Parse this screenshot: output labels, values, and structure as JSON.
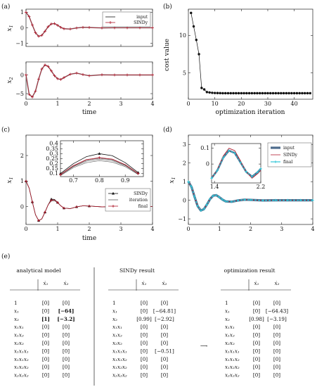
{
  "panel_labels": [
    "(a)",
    "(b)",
    "(c)",
    "(d)",
    "(e)"
  ],
  "colors": {
    "input": "#8a8a8a",
    "sindy": "#b01c2e",
    "final_d": "#2fc6d8",
    "input_d": "#4d6b8c",
    "iteration": "#5a5a5a",
    "coef_blue": "#1c72a8",
    "coef_red": "#b01c2e"
  },
  "chart_data": [
    {
      "id": "a1",
      "type": "line",
      "ylabel": "x1",
      "xlabel": "",
      "xlim": [
        0,
        4
      ],
      "ylim": [
        -1.2,
        1.2
      ],
      "xticks": [
        0,
        1,
        2,
        3,
        4
      ],
      "yticks": [
        -1,
        0,
        1
      ],
      "x": [
        0,
        0.1,
        0.2,
        0.3,
        0.4,
        0.5,
        0.6,
        0.7,
        0.8,
        0.9,
        1.0,
        1.1,
        1.2,
        1.4,
        1.6,
        1.8,
        2.0,
        2.4,
        2.8,
        3.2,
        3.6,
        4.0
      ],
      "series": [
        {
          "name": "input",
          "values": [
            1.0,
            0.72,
            0.18,
            -0.32,
            -0.55,
            -0.48,
            -0.22,
            0.07,
            0.25,
            0.27,
            0.16,
            0.03,
            -0.06,
            -0.08,
            -0.01,
            0.03,
            0.02,
            -0.01,
            0.0,
            0.0,
            0.0,
            0.0
          ]
        },
        {
          "name": "SINDy",
          "values": [
            1.0,
            0.72,
            0.18,
            -0.32,
            -0.55,
            -0.48,
            -0.22,
            0.07,
            0.25,
            0.27,
            0.16,
            0.03,
            -0.06,
            -0.08,
            -0.01,
            0.03,
            0.02,
            -0.01,
            0.0,
            0.0,
            0.0,
            0.0
          ]
        }
      ],
      "legend": [
        "input",
        "SINDy"
      ],
      "legend_position": "top-right",
      "tick_labels_x": false
    },
    {
      "id": "a2",
      "type": "line",
      "ylabel": "x2",
      "xlabel": "time",
      "xlim": [
        0,
        4
      ],
      "ylim": [
        -6.5,
        3.5
      ],
      "xticks": [
        0,
        1,
        2,
        3,
        4
      ],
      "yticks": [
        -5,
        0
      ],
      "x": [
        0,
        0.1,
        0.2,
        0.3,
        0.4,
        0.5,
        0.6,
        0.7,
        0.8,
        0.9,
        1.0,
        1.1,
        1.2,
        1.4,
        1.6,
        1.8,
        2.0,
        2.4,
        2.8,
        3.2,
        3.6,
        4.0
      ],
      "series": [
        {
          "name": "input",
          "values": [
            0.0,
            -5.2,
            -5.9,
            -4.3,
            -1.1,
            1.6,
            2.7,
            2.3,
            1.1,
            -0.2,
            -1.0,
            -1.2,
            -0.7,
            0.2,
            0.5,
            0.1,
            -0.2,
            0.05,
            0.0,
            0.0,
            0.0,
            0.0
          ]
        },
        {
          "name": "SINDy",
          "values": [
            0.0,
            -5.2,
            -5.9,
            -4.3,
            -1.1,
            1.6,
            2.7,
            2.3,
            1.1,
            -0.2,
            -1.0,
            -1.2,
            -0.7,
            0.2,
            0.5,
            0.1,
            -0.2,
            0.05,
            0.0,
            0.0,
            0.0,
            0.0
          ]
        }
      ]
    },
    {
      "id": "b",
      "type": "line",
      "ylabel": "cost value",
      "xlabel": "optimization iteration",
      "xlim": [
        0,
        47
      ],
      "ylim": [
        1.5,
        13.5
      ],
      "xticks": [
        0,
        10,
        20,
        30,
        40
      ],
      "yticks": [
        5,
        10
      ],
      "x": [
        1,
        2,
        3,
        4,
        5,
        6,
        7,
        8,
        9,
        10,
        11,
        12,
        13,
        14,
        15,
        16,
        17,
        18,
        19,
        20,
        21,
        22,
        23,
        24,
        25,
        26,
        27,
        28,
        29,
        30,
        31,
        32,
        33,
        34,
        35,
        36,
        37,
        38,
        39,
        40,
        41,
        42,
        43,
        44,
        45,
        46
      ],
      "series": [
        {
          "name": "cost",
          "values": [
            13.0,
            11.2,
            9.4,
            7.5,
            3.0,
            2.8,
            2.45,
            2.4,
            2.35,
            2.33,
            2.32,
            2.31,
            2.3,
            2.3,
            2.3,
            2.3,
            2.3,
            2.3,
            2.3,
            2.3,
            2.3,
            2.3,
            2.3,
            2.3,
            2.3,
            2.3,
            2.3,
            2.3,
            2.3,
            2.3,
            2.3,
            2.3,
            2.3,
            2.3,
            2.3,
            2.3,
            2.3,
            2.3,
            2.3,
            2.3,
            2.3,
            2.3,
            2.3,
            2.3,
            2.3,
            2.3
          ]
        }
      ]
    },
    {
      "id": "c",
      "type": "line",
      "ylabel": "x1",
      "xlabel": "time",
      "xlim": [
        0,
        4
      ],
      "ylim": [
        -0.7,
        2.8
      ],
      "xticks": [
        0,
        1,
        2,
        3,
        4
      ],
      "yticks": [
        0,
        1,
        2
      ],
      "x": [
        0,
        0.1,
        0.2,
        0.3,
        0.4,
        0.5,
        0.6,
        0.7,
        0.8,
        0.9,
        1.0,
        1.1,
        1.2,
        1.4,
        1.6,
        1.8,
        2.0,
        2.4,
        2.8,
        3.2,
        3.6,
        4.0
      ],
      "series": [
        {
          "name": "SINDy",
          "values": [
            1.0,
            0.72,
            0.18,
            -0.32,
            -0.55,
            -0.48,
            -0.22,
            0.07,
            0.29,
            0.28,
            0.16,
            0.03,
            -0.06,
            -0.08,
            -0.01,
            0.03,
            0.02,
            -0.01,
            0.0,
            0.0,
            0.0,
            0.0
          ]
        },
        {
          "name": "iteration",
          "values": [
            1.0,
            0.72,
            0.18,
            -0.32,
            -0.55,
            -0.48,
            -0.22,
            0.07,
            0.22,
            0.23,
            0.15,
            0.03,
            -0.06,
            -0.08,
            -0.01,
            0.03,
            0.02,
            -0.01,
            0.0,
            0.0,
            0.0,
            0.0
          ]
        },
        {
          "name": "final",
          "values": [
            1.0,
            0.72,
            0.18,
            -0.32,
            -0.55,
            -0.48,
            -0.22,
            0.07,
            0.25,
            0.26,
            0.16,
            0.03,
            -0.06,
            -0.08,
            -0.01,
            0.03,
            0.02,
            -0.01,
            0.0,
            0.0,
            0.0,
            0.0
          ]
        }
      ],
      "legend": [
        "SINDy",
        "iteration",
        "final"
      ],
      "legend_position": "bottom-right",
      "inset": {
        "xlim": [
          0.65,
          0.97
        ],
        "ylim": [
          0.07,
          0.43
        ],
        "xticks": [
          0.7,
          0.8,
          0.9
        ],
        "yticks": [
          0.1,
          0.15,
          0.2,
          0.25,
          0.3,
          0.35,
          0.4
        ],
        "x": [
          0.65,
          0.7,
          0.75,
          0.8,
          0.85,
          0.9,
          0.95
        ],
        "series": [
          {
            "name": "SINDy",
            "values": [
              0.1,
              0.2,
              0.27,
              0.3,
              0.28,
              0.21,
              0.11
            ]
          },
          {
            "name": "final",
            "values": [
              0.09,
              0.18,
              0.24,
              0.26,
              0.245,
              0.19,
              0.1
            ]
          }
        ],
        "iterations": [
          [
            0.08,
            0.16,
            0.21,
            0.23,
            0.215,
            0.17,
            0.09
          ],
          [
            0.085,
            0.17,
            0.225,
            0.245,
            0.23,
            0.18,
            0.095
          ],
          [
            0.09,
            0.175,
            0.235,
            0.255,
            0.24,
            0.185,
            0.1
          ]
        ]
      }
    },
    {
      "id": "d",
      "type": "line",
      "ylabel": "x1",
      "xlabel": "",
      "xlim": [
        0,
        4
      ],
      "ylim": [
        -1.3,
        3.5
      ],
      "xticks": [
        0,
        1,
        2,
        3,
        4
      ],
      "yticks": [
        -1,
        0,
        1,
        2,
        3
      ],
      "x": [
        0,
        0.1,
        0.2,
        0.3,
        0.4,
        0.5,
        0.6,
        0.7,
        0.8,
        0.9,
        1.0,
        1.1,
        1.2,
        1.4,
        1.6,
        1.8,
        2.0,
        2.4,
        2.8,
        3.2,
        3.6,
        4.0
      ],
      "series": [
        {
          "name": "input",
          "values": [
            1.0,
            0.72,
            0.18,
            -0.32,
            -0.55,
            -0.48,
            -0.22,
            0.07,
            0.25,
            0.27,
            0.16,
            0.03,
            -0.06,
            -0.08,
            -0.01,
            0.03,
            0.02,
            -0.01,
            0.0,
            0.0,
            0.0,
            0.0
          ]
        },
        {
          "name": "SINDy",
          "values": [
            1.0,
            0.72,
            0.18,
            -0.32,
            -0.55,
            -0.48,
            -0.22,
            0.07,
            0.27,
            0.28,
            0.16,
            0.03,
            -0.06,
            -0.08,
            -0.01,
            0.03,
            0.02,
            -0.01,
            0.0,
            0.0,
            0.0,
            0.0
          ]
        },
        {
          "name": "final",
          "values": [
            1.0,
            0.72,
            0.18,
            -0.32,
            -0.55,
            -0.48,
            -0.22,
            0.07,
            0.25,
            0.27,
            0.16,
            0.03,
            -0.06,
            -0.08,
            -0.01,
            0.03,
            0.02,
            -0.01,
            0.0,
            0.0,
            0.0,
            0.0
          ]
        }
      ],
      "legend": [
        "input",
        "SINDy",
        "final"
      ],
      "legend_position": "top-right",
      "inset": {
        "xlim": [
          1.35,
          2.2
        ],
        "ylim": [
          -0.12,
          0.13
        ],
        "xticks": [
          1.4,
          2.2
        ],
        "yticks": [
          0,
          0.1
        ],
        "x": [
          1.35,
          1.45,
          1.55,
          1.65,
          1.75,
          1.85,
          1.95,
          2.05,
          2.15,
          2.2
        ],
        "series": [
          {
            "name": "input",
            "values": [
              -0.09,
              -0.04,
              0.04,
              0.085,
              0.07,
              0.01,
              -0.05,
              -0.08,
              -0.05,
              -0.03
            ]
          },
          {
            "name": "SINDy",
            "values": [
              -0.09,
              -0.035,
              0.05,
              0.1,
              0.085,
              0.02,
              -0.05,
              -0.09,
              -0.06,
              -0.04
            ]
          },
          {
            "name": "final",
            "values": [
              -0.09,
              -0.04,
              0.04,
              0.085,
              0.07,
              0.01,
              -0.05,
              -0.08,
              -0.05,
              -0.03
            ]
          }
        ]
      }
    }
  ],
  "tables": {
    "analytical": {
      "title": "analytical model",
      "cols": [
        "ẋ₁",
        "ẋ₂"
      ],
      "rows": [
        {
          "term": "1",
          "c1": "[0]",
          "c2": "[0]"
        },
        {
          "term": "x₁",
          "c1": "[0]",
          "c2": "[−64]",
          "c2_bold": true
        },
        {
          "term": "x₂",
          "c1": "[1]",
          "c2": "[−3.2]",
          "c1_bold": true,
          "c2_bold": true
        },
        {
          "term": "x₁x₁",
          "c1": "[0]",
          "c2": "[0]"
        },
        {
          "term": "x₁x₂",
          "c1": "[0]",
          "c2": "[0]"
        },
        {
          "term": "x₂x₂",
          "c1": "[0]",
          "c2": "[0]"
        },
        {
          "term": "x₁x₁x₁",
          "c1": "[0]",
          "c2": "[0]"
        },
        {
          "term": "x₁x₁x₂",
          "c1": "[0]",
          "c2": "[0]"
        },
        {
          "term": "x₁x₂x₂",
          "c1": "[0]",
          "c2": "[0]"
        },
        {
          "term": "x₂x₂x₂",
          "c1": "[0]",
          "c2": "[0]"
        }
      ]
    },
    "sindy": {
      "title": "SINDy result",
      "cols": [
        "ẋ₁",
        "ẋ₂"
      ],
      "rows": [
        {
          "term": "1",
          "c1": "[0]",
          "c2": "[0]"
        },
        {
          "term": "x₁",
          "c1": "[0]",
          "c2": "[−64.81]",
          "c2_color": "blue"
        },
        {
          "term": "x₂",
          "c1": "[0.99]",
          "c2": "[−2.92]",
          "c1_color": "blue",
          "c2_color": "red"
        },
        {
          "term": "x₁x₁",
          "c1": "[0]",
          "c2": "[0]"
        },
        {
          "term": "x₁x₂",
          "c1": "[0]",
          "c2": "[0]"
        },
        {
          "term": "x₂x₂",
          "c1": "[0]",
          "c2": "[0]"
        },
        {
          "term": "x₁x₁x₁",
          "c1": "[0]",
          "c2": "[−0.51]",
          "c2_color": "red"
        },
        {
          "term": "x₁x₁x₂",
          "c1": "[0]",
          "c2": "[0]"
        },
        {
          "term": "x₁x₂x₂",
          "c1": "[0]",
          "c2": "[0]"
        },
        {
          "term": "x₂x₂x₂",
          "c1": "[0]",
          "c2": "[0]"
        }
      ]
    },
    "optimization": {
      "title": "optimization result",
      "cols": [
        "ẋ₁",
        "ẋ₂"
      ],
      "rows": [
        {
          "term": "1",
          "c1": "[0]",
          "c2": "[0]"
        },
        {
          "term": "x₁",
          "c1": "[0]",
          "c2": "[−64.43]",
          "c2_color": "blue"
        },
        {
          "term": "x₂",
          "c1": "[0.98]",
          "c2": "[−3.19]",
          "c1_color": "blue",
          "c2_color": "blue"
        },
        {
          "term": "x₁x₁",
          "c1": "[0]",
          "c2": "[0]"
        },
        {
          "term": "x₁x₂",
          "c1": "[0]",
          "c2": "[0]"
        },
        {
          "term": "x₂x₂",
          "c1": "[0]",
          "c2": "[0]"
        },
        {
          "term": "x₁x₁x₁",
          "c1": "[0]",
          "c2": "[0]",
          "c2_color": "blue"
        },
        {
          "term": "x₁x₁x₂",
          "c1": "[0]",
          "c2": "[0]"
        },
        {
          "term": "x₁x₂x₂",
          "c1": "[0]",
          "c2": "[0]"
        },
        {
          "term": "x₂x₂x₂",
          "c1": "[0]",
          "c2": "[0]"
        }
      ]
    },
    "arrow": "⟶"
  }
}
